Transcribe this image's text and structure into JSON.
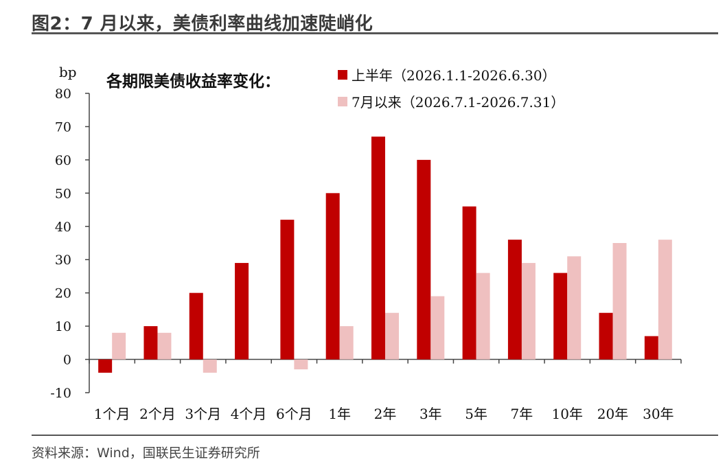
{
  "figure": {
    "title": "图2：7 月以来，美债利率曲线加速陡峭化",
    "source": "资料来源：Wind，国联民生证券研究所"
  },
  "colors": {
    "series_h1": "#c00000",
    "series_july": "#efc0c0",
    "axis": "#444444",
    "rule": "#555555"
  },
  "chart_data": {
    "type": "bar",
    "title": "各期限美债收益率变化：",
    "unit_label": "bp",
    "ylim": [
      -10,
      80
    ],
    "yticks": [
      -10,
      0,
      10,
      20,
      30,
      40,
      50,
      60,
      70,
      80
    ],
    "grid": false,
    "legend_position": "top-center",
    "categories": [
      "1个月",
      "2个月",
      "3个月",
      "4个月",
      "6个月",
      "1年",
      "2年",
      "3年",
      "5年",
      "7年",
      "10年",
      "20年",
      "30年"
    ],
    "series": [
      {
        "name": "上半年（2026.1.1-2026.6.30）",
        "values": [
          -4,
          10,
          20,
          29,
          42,
          50,
          67,
          60,
          46,
          36,
          26,
          14,
          7
        ]
      },
      {
        "name": "7月以来（2026.7.1-2026.7.31）",
        "values": [
          8,
          8,
          -4,
          null,
          -3,
          10,
          14,
          19,
          26,
          29,
          31,
          35,
          36
        ]
      }
    ]
  }
}
